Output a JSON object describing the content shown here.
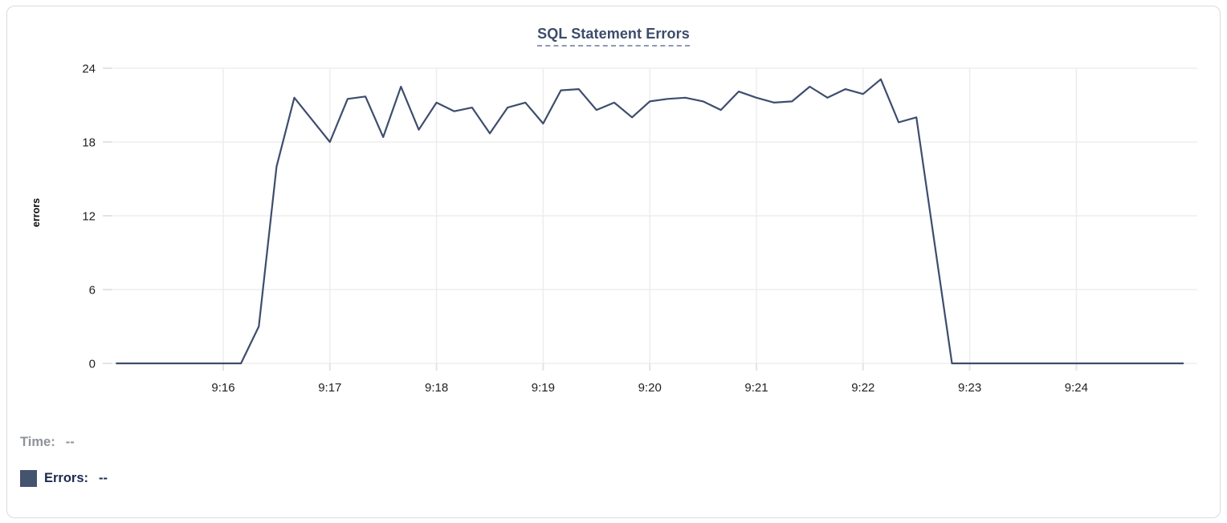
{
  "chart_data": {
    "type": "line",
    "title": "SQL Statement Errors",
    "ylabel": "errors",
    "xlabel": "",
    "ylim": [
      0,
      24
    ],
    "y_ticks": [
      0,
      6,
      12,
      18,
      24
    ],
    "x_ticks": [
      "9:16",
      "9:17",
      "9:18",
      "9:19",
      "9:20",
      "9:21",
      "9:22",
      "9:23",
      "9:24"
    ],
    "xlim": [
      "9:14:58",
      "9:25:07"
    ],
    "grid": true,
    "legend_position": "bottom-left",
    "series": [
      {
        "name": "Errors",
        "color": "#3e4d6e",
        "x": [
          "9:15:00",
          "9:15:10",
          "9:15:20",
          "9:15:30",
          "9:15:40",
          "9:15:50",
          "9:16:00",
          "9:16:10",
          "9:16:20",
          "9:16:30",
          "9:16:40",
          "9:16:50",
          "9:17:00",
          "9:17:10",
          "9:17:20",
          "9:17:30",
          "9:17:40",
          "9:17:50",
          "9:18:00",
          "9:18:10",
          "9:18:20",
          "9:18:30",
          "9:18:40",
          "9:18:50",
          "9:19:00",
          "9:19:10",
          "9:19:20",
          "9:19:30",
          "9:19:40",
          "9:19:50",
          "9:20:00",
          "9:20:10",
          "9:20:20",
          "9:20:30",
          "9:20:40",
          "9:20:50",
          "9:21:00",
          "9:21:10",
          "9:21:20",
          "9:21:30",
          "9:21:40",
          "9:21:50",
          "9:22:00",
          "9:22:10",
          "9:22:20",
          "9:22:30",
          "9:22:40",
          "9:22:50",
          "9:23:00",
          "9:23:10",
          "9:23:20",
          "9:23:30",
          "9:23:40",
          "9:23:50",
          "9:24:00",
          "9:24:10",
          "9:24:20",
          "9:24:30",
          "9:24:40",
          "9:24:50",
          "9:25:00"
        ],
        "values": [
          0,
          0,
          0,
          0,
          0,
          0,
          0,
          0,
          3,
          16,
          21.6,
          19.8,
          18,
          21.5,
          21.7,
          18.4,
          22.5,
          19,
          21.2,
          20.5,
          20.8,
          18.7,
          20.8,
          21.2,
          19.5,
          22.2,
          22.3,
          20.6,
          21.2,
          20,
          21.3,
          21.5,
          21.6,
          21.3,
          20.6,
          22.1,
          21.6,
          21.2,
          21.3,
          22.5,
          21.6,
          22.3,
          21.9,
          23.1,
          19.6,
          20,
          10,
          0,
          0,
          0,
          0,
          0,
          0,
          0,
          0,
          0,
          0,
          0,
          0,
          0,
          0
        ]
      }
    ]
  },
  "tooltip": {
    "time_label": "Time:",
    "time_value": "--",
    "errors_label": "Errors:",
    "errors_value": "--"
  },
  "colors": {
    "series_line": "#3e4d6e",
    "legend_swatch": "#44536e",
    "title": "#3c4c6a",
    "title_underline": "#8b99b4",
    "time_text": "#8f9298",
    "errors_text": "#1c2b4e",
    "tick_label": "#1f1f1f",
    "gridline": "#ededed",
    "axis_tick": "#e3e4e6",
    "card_border": "#d8dadd",
    "background": "#ffffff"
  }
}
